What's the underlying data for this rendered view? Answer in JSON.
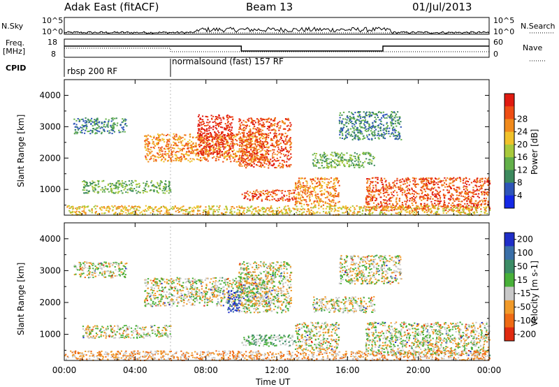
{
  "header": {
    "radar": "Adak East (fitACF)",
    "beam": "Beam 13",
    "date": "01/Jul/2013"
  },
  "summary_panels": {
    "nsky": {
      "label": "N.Sky",
      "ticks": [
        "10^5",
        "10^0"
      ]
    },
    "nsearch": {
      "label": "N.Search",
      "ticks": [
        "10^5",
        "10^0"
      ]
    },
    "freq": {
      "label_line1": "Freq.",
      "label_line2": "[MHz]",
      "ticks": [
        "18",
        "8"
      ]
    },
    "nave": {
      "label": "Nave",
      "ticks": [
        "60",
        "0"
      ]
    },
    "cpid": {
      "label": "CPID",
      "modes": [
        {
          "name": "rbsp 200 RF",
          "start_hour": 0
        },
        {
          "name": "normalsound (fast) 157 RF",
          "start_hour": 6
        }
      ]
    }
  },
  "colors": {
    "frame": "#000000",
    "bg": "#ffffff"
  },
  "chart_data": [
    {
      "type": "heatmap",
      "name": "power",
      "xlabel": "",
      "ylabel": "Slant Range [km]",
      "xlim": [
        0,
        24
      ],
      "ylim": [
        180,
        4500
      ],
      "yticks": [
        1000,
        2000,
        3000,
        4000
      ],
      "colorbar": {
        "label": "Power [dB]",
        "ticks": [
          "4",
          "8",
          "12",
          "16",
          "20",
          "24",
          "28"
        ],
        "colors": [
          "#1428e6",
          "#2e55b8",
          "#3d8a5e",
          "#63b04a",
          "#a8c93c",
          "#f0c12a",
          "#f08a1c",
          "#ee4d14",
          "#e01a10"
        ]
      },
      "echo_regions": [
        {
          "t0": 0.5,
          "t1": 3.5,
          "r0": 2800,
          "r1": 3300,
          "level": 2
        },
        {
          "t0": 4.5,
          "t1": 11.5,
          "r0": 1900,
          "r1": 2800,
          "level": 6
        },
        {
          "t0": 7.5,
          "t1": 9.5,
          "r0": 2100,
          "r1": 3400,
          "level": 8
        },
        {
          "t0": 9.8,
          "t1": 12.8,
          "r0": 1700,
          "r1": 3300,
          "level": 7
        },
        {
          "t0": 10,
          "t1": 13,
          "r0": 650,
          "r1": 1000,
          "level": 7
        },
        {
          "t0": 1,
          "t1": 6,
          "r0": 900,
          "r1": 1300,
          "level": 3
        },
        {
          "t0": 13,
          "t1": 15.5,
          "r0": 500,
          "r1": 1400,
          "level": 6
        },
        {
          "t0": 14,
          "t1": 17.5,
          "r0": 1700,
          "r1": 2200,
          "level": 3
        },
        {
          "t0": 15.5,
          "t1": 19,
          "r0": 2600,
          "r1": 3500,
          "level": 2
        },
        {
          "t0": 17,
          "t1": 24,
          "r0": 350,
          "r1": 1400,
          "level": 7
        },
        {
          "t0": 0,
          "t1": 24,
          "r0": 200,
          "r1": 500,
          "level": 5
        }
      ]
    },
    {
      "type": "heatmap",
      "name": "velocity",
      "xlabel": "Time UT",
      "ylabel": "Slant Range [km]",
      "xlim": [
        0,
        24
      ],
      "ylim": [
        180,
        4500
      ],
      "xticks": [
        "00:00",
        "04:00",
        "08:00",
        "12:00",
        "16:00",
        "20:00",
        "00:00"
      ],
      "yticks": [
        1000,
        2000,
        3000,
        4000
      ],
      "colorbar": {
        "label": "Velocity [m s-1]",
        "ticks": [
          "200",
          "100",
          "50",
          "15",
          "-15",
          "-50",
          "-100",
          "-200"
        ],
        "colors": [
          "#1f2ec8",
          "#3a6fa8",
          "#3c8c66",
          "#48b039",
          "#c8c8c8",
          "#f09a2a",
          "#ee6a14",
          "#e02a10"
        ]
      },
      "echo_regions": [
        {
          "t0": 0.5,
          "t1": 3.5,
          "r0": 2800,
          "r1": 3300,
          "level": 4
        },
        {
          "t0": 4.5,
          "t1": 11.5,
          "r0": 1900,
          "r1": 2800,
          "level": 4
        },
        {
          "t0": 9.2,
          "t1": 9.9,
          "r0": 1700,
          "r1": 2400,
          "level": 0
        },
        {
          "t0": 9.8,
          "t1": 12.8,
          "r0": 1700,
          "r1": 3300,
          "level": 4
        },
        {
          "t0": 10,
          "t1": 13,
          "r0": 650,
          "r1": 1000,
          "level": 3
        },
        {
          "t0": 1,
          "t1": 6,
          "r0": 900,
          "r1": 1300,
          "level": 4
        },
        {
          "t0": 13,
          "t1": 15.5,
          "r0": 500,
          "r1": 1400,
          "level": 4
        },
        {
          "t0": 14,
          "t1": 17.5,
          "r0": 1700,
          "r1": 2200,
          "level": 4
        },
        {
          "t0": 15.5,
          "t1": 19,
          "r0": 2600,
          "r1": 3500,
          "level": 4
        },
        {
          "t0": 17,
          "t1": 24,
          "r0": 350,
          "r1": 1400,
          "level": 4
        },
        {
          "t0": 0,
          "t1": 24,
          "r0": 200,
          "r1": 500,
          "level": 5
        }
      ]
    }
  ]
}
